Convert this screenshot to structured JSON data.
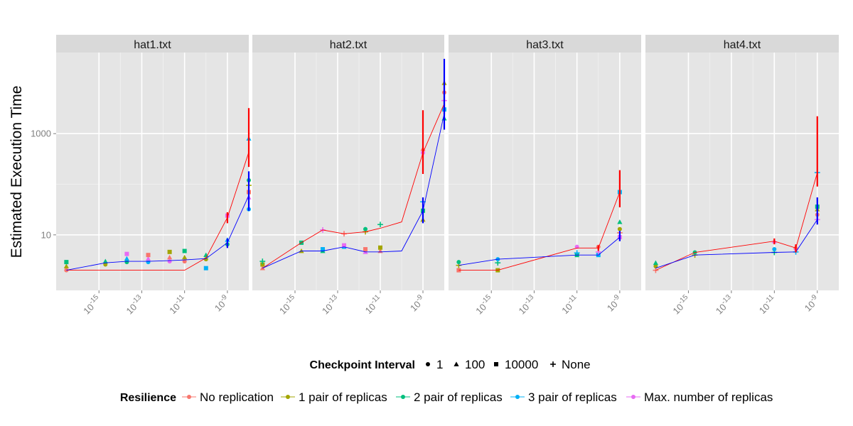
{
  "chart_data": {
    "type": "line",
    "facet_titles": [
      "hat1.txt",
      "hat2.txt",
      "hat3.txt",
      "hat4.txt"
    ],
    "ylabel": "Estimated Execution Time",
    "xlabel": "",
    "x_scale": "log10",
    "y_scale": "log10",
    "xlim": [
      1e-17,
      1e-08
    ],
    "ylim": [
      0.8,
      40000
    ],
    "x_ticks": [
      {
        "value": 1e-15,
        "base": "10",
        "exp": "-15"
      },
      {
        "value": 1e-13,
        "base": "10",
        "exp": "-13"
      },
      {
        "value": 1e-11,
        "base": "10",
        "exp": "-11"
      },
      {
        "value": 1e-09,
        "base": "10",
        "exp": "-9"
      }
    ],
    "y_ticks": [
      {
        "value": 10,
        "label": "10"
      },
      {
        "value": 1000,
        "label": "1000"
      }
    ],
    "grid": true,
    "legend_position": "bottom",
    "legend_checkpoint": {
      "title": "Checkpoint Interval",
      "items": [
        {
          "label": "1",
          "shape": "circle"
        },
        {
          "label": "100",
          "shape": "triangle"
        },
        {
          "label": "10000",
          "shape": "square"
        },
        {
          "label": "None",
          "shape": "plus"
        }
      ]
    },
    "legend_resilience": {
      "title": "Resilience",
      "items": [
        {
          "label": "No replication",
          "color": "#F8766D"
        },
        {
          "label": "1 pair of replicas",
          "color": "#A3A500"
        },
        {
          "label": "2 pair of replicas",
          "color": "#00BF7D"
        },
        {
          "label": "3 pair of replicas",
          "color": "#00B0F6"
        },
        {
          "label": "Max. number of replicas",
          "color": "#E76BF3"
        }
      ]
    },
    "line_colors": {
      "red": "#FF0000",
      "blue": "#0000FF"
    },
    "facets": [
      {
        "red_line": {
          "x": [
            3e-17,
            2e-15,
            2e-14,
            2e-13,
            2e-12,
            1e-11,
            1e-10,
            1e-09,
            1e-08
          ],
          "y": [
            2.0,
            2.0,
            2.0,
            2.0,
            2.0,
            2.0,
            3.5,
            22,
            430
          ]
        },
        "blue_line": {
          "x": [
            3e-17,
            2e-15,
            2e-14,
            2e-13,
            2e-12,
            1e-11,
            1e-10,
            1e-09,
            1e-08
          ],
          "y": [
            2.0,
            2.8,
            3.0,
            3.0,
            3.1,
            3.2,
            3.4,
            7,
            60
          ]
        },
        "error_bars": [
          {
            "x": 1e-09,
            "low": 17,
            "high": 28,
            "color": "#FF0000"
          },
          {
            "x": 1e-08,
            "low": 220,
            "high": 3200,
            "color": "#FF0000"
          },
          {
            "x": 1e-09,
            "low": 5.5,
            "high": 8.5,
            "color": "#0000FF"
          },
          {
            "x": 1e-08,
            "low": 30,
            "high": 180,
            "color": "#0000FF"
          }
        ],
        "points": [
          {
            "x": 3e-17,
            "ys": [
              2.0,
              2.4,
              2.9
            ]
          },
          {
            "x": 2e-15,
            "ys": [
              2.6,
              3.0
            ]
          },
          {
            "x": 2e-14,
            "ys": [
              2.9,
              3.4,
              4.2
            ]
          },
          {
            "x": 2e-13,
            "ys": [
              2.9,
              3.4,
              4.0
            ]
          },
          {
            "x": 2e-12,
            "ys": [
              3.0,
              3.6,
              4.6
            ]
          },
          {
            "x": 1e-11,
            "ys": [
              3.0,
              3.6,
              4.8
            ]
          },
          {
            "x": 1e-10,
            "ys": [
              3.3,
              4.0,
              2.2
            ]
          },
          {
            "x": 1e-09,
            "ys": [
              6.5,
              8.0,
              24
            ]
          },
          {
            "x": 1e-08,
            "ys": [
              32,
              55,
              70,
              95,
              120,
              800
            ]
          }
        ]
      },
      {
        "red_line": {
          "x": [
            3e-17,
            2e-15,
            2e-14,
            2e-13,
            2e-12,
            1e-11,
            1e-10,
            1e-09,
            1e-08
          ],
          "y": [
            2.2,
            7.0,
            12.5,
            10.5,
            11.5,
            13.5,
            18,
            420,
            3900
          ]
        },
        "blue_line": {
          "x": [
            3e-17,
            2e-15,
            2e-14,
            2e-13,
            2e-12,
            1e-11,
            1e-10,
            1e-09,
            1e-08
          ],
          "y": [
            2.2,
            4.8,
            4.8,
            5.8,
            4.6,
            4.6,
            4.8,
            30,
            2500
          ]
        },
        "error_bars": [
          {
            "x": 1e-09,
            "low": 160,
            "high": 2900,
            "color": "#FF0000"
          },
          {
            "x": 1e-08,
            "low": 2400,
            "high": 11000,
            "color": "#FF0000"
          },
          {
            "x": 1e-09,
            "low": 17,
            "high": 55,
            "color": "#0000FF"
          },
          {
            "x": 1e-08,
            "low": 1200,
            "high": 30000,
            "color": "#0000FF"
          }
        ],
        "points": [
          {
            "x": 3e-17,
            "ys": [
              2.2,
              2.6,
              3.0
            ]
          },
          {
            "x": 2e-15,
            "ys": [
              4.8,
              7.0
            ]
          },
          {
            "x": 2e-14,
            "ys": [
              4.8,
              5.2,
              12.5
            ]
          },
          {
            "x": 2e-13,
            "ys": [
              5.8,
              6.2,
              10.5
            ]
          },
          {
            "x": 2e-12,
            "ys": [
              4.6,
              5.2,
              11.5,
              13
            ]
          },
          {
            "x": 1e-11,
            "ys": [
              4.8,
              5.6,
              16
            ]
          },
          {
            "x": 1e-09,
            "ys": [
              20,
              30,
              45,
              420,
              500
            ]
          },
          {
            "x": 1e-08,
            "ys": [
              2000,
              3000,
              4500,
              6500,
              10000
            ]
          }
        ]
      },
      {
        "red_line": {
          "x": [
            3e-17,
            2e-15,
            1e-11,
            1e-10,
            1e-09
          ],
          "y": [
            2.0,
            2.0,
            5.5,
            5.5,
            70
          ]
        },
        "blue_line": {
          "x": [
            3e-17,
            2e-15,
            1e-11,
            1e-10,
            1e-09
          ],
          "y": [
            2.5,
            3.3,
            4.0,
            4.0,
            9
          ]
        },
        "error_bars": [
          {
            "x": 1e-09,
            "low": 35,
            "high": 190,
            "color": "#FF0000"
          },
          {
            "x": 1e-10,
            "low": 4.8,
            "high": 6.2,
            "color": "#FF0000"
          },
          {
            "x": 1e-09,
            "low": 7.5,
            "high": 12,
            "color": "#0000FF"
          }
        ],
        "points": [
          {
            "x": 3e-17,
            "ys": [
              2.0,
              2.5,
              2.9
            ]
          },
          {
            "x": 2e-15,
            "ys": [
              2.0,
              2.8,
              3.3
            ]
          },
          {
            "x": 1e-11,
            "ys": [
              4.0,
              4.4,
              5.8
            ]
          },
          {
            "x": 1e-10,
            "ys": [
              4.0,
              4.6,
              5.8
            ]
          },
          {
            "x": 1e-09,
            "ys": [
              9,
              11,
              13,
              18,
              70
            ]
          }
        ]
      },
      {
        "red_line": {
          "x": [
            3e-17,
            2e-15,
            1e-11,
            1e-10,
            1e-09
          ],
          "y": [
            2.0,
            4.5,
            7.5,
            5.5,
            170
          ]
        },
        "blue_line": {
          "x": [
            3e-17,
            2e-15,
            1e-11,
            1e-10,
            1e-09
          ],
          "y": [
            2.2,
            4.0,
            4.5,
            4.6,
            20
          ]
        },
        "error_bars": [
          {
            "x": 1e-09,
            "low": 90,
            "high": 2200,
            "color": "#FF0000"
          },
          {
            "x": 1e-11,
            "low": 6.5,
            "high": 8.5,
            "color": "#FF0000"
          },
          {
            "x": 1e-10,
            "low": 4.5,
            "high": 6.5,
            "color": "#FF0000"
          },
          {
            "x": 1e-09,
            "low": 16,
            "high": 55,
            "color": "#0000FF"
          }
        ],
        "points": [
          {
            "x": 3e-17,
            "ys": [
              2.0,
              2.4,
              2.8
            ]
          },
          {
            "x": 2e-15,
            "ys": [
              4.0,
              4.5
            ]
          },
          {
            "x": 1e-11,
            "ys": [
              4.5,
              5.2,
              7.5
            ]
          },
          {
            "x": 1e-10,
            "ys": [
              4.6,
              5.3,
              5.8
            ]
          },
          {
            "x": 1e-09,
            "ys": [
              20,
              25,
              32,
              36,
              170
            ]
          }
        ]
      }
    ]
  }
}
